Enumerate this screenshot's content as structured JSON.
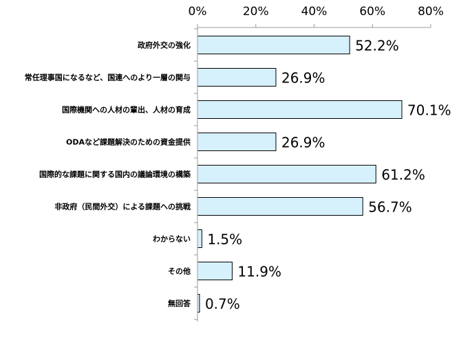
{
  "chart_data": {
    "type": "bar",
    "orientation": "horizontal",
    "categories": [
      "政府外交の強化",
      "常任理事国になるなど、国連へのより一層の関与",
      "国際機関への人材の輩出、人材の育成",
      "ODAなど課題解決のための資金提供",
      "国際的な課題に関する国内の議論環境の構築",
      "非政府（民間外交）による課題への挑戦",
      "わからない",
      "その他",
      "無回答"
    ],
    "values": [
      52.2,
      26.9,
      70.1,
      26.9,
      61.2,
      56.7,
      1.5,
      11.9,
      0.7
    ],
    "value_labels": [
      "52.2%",
      "26.9%",
      "70.1%",
      "26.9%",
      "61.2%",
      "56.7%",
      "1.5%",
      "11.9%",
      "0.7%"
    ],
    "x_ticks": [
      0,
      20,
      40,
      60,
      80
    ],
    "x_tick_labels": [
      "0%",
      "20%",
      "40%",
      "60%",
      "80%"
    ],
    "xlim": [
      0,
      80
    ],
    "x_axis_position": "top",
    "bar_color": "#d6f0fc",
    "bar_outline": "#000000",
    "grid": false,
    "legend": false
  }
}
